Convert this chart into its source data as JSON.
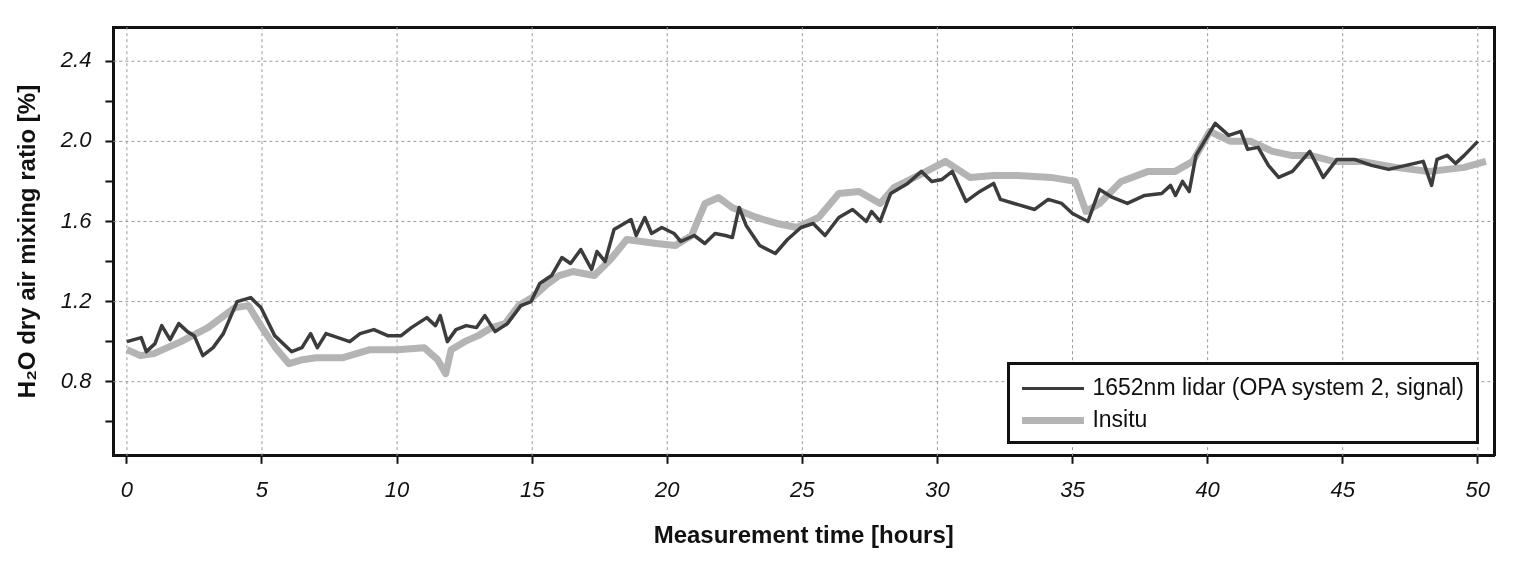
{
  "chart_data": {
    "type": "line",
    "xlabel": "Measurement time [hours]",
    "ylabel": "H₂O dry air mixing ratio [%]",
    "xlim": [
      -0.5,
      50.6
    ],
    "ylim": [
      0.43,
      2.57
    ],
    "xticks": [
      0,
      5,
      10,
      15,
      20,
      25,
      30,
      35,
      40,
      45,
      50
    ],
    "yticks": [
      {
        "value": 0.6,
        "label": null
      },
      {
        "value": 0.8,
        "label": "0.8"
      },
      {
        "value": 1.0,
        "label": null
      },
      {
        "value": 1.2,
        "label": "1.2"
      },
      {
        "value": 1.4,
        "label": null
      },
      {
        "value": 1.6,
        "label": "1.6"
      },
      {
        "value": 1.8,
        "label": null
      },
      {
        "value": 2.0,
        "label": "2.0"
      },
      {
        "value": 2.2,
        "label": null
      },
      {
        "value": 2.4,
        "label": "2.4"
      }
    ],
    "grid": true,
    "legend": "bottom right",
    "marker": "none",
    "series": [
      {
        "name": "Insitu",
        "color": "#b4b4b4",
        "x": [
          0,
          0.5,
          1.0,
          2.0,
          3.0,
          3.5,
          4.0,
          4.5,
          5.0,
          5.5,
          6.0,
          6.5,
          7.0,
          8.0,
          9.0,
          10.0,
          11.0,
          11.5,
          11.8,
          12.0,
          12.5,
          13.0,
          13.5,
          14.0,
          14.5,
          15.0,
          15.5,
          16.0,
          16.5,
          17.3,
          17.9,
          18.5,
          19.6,
          20.3,
          20.9,
          21.4,
          21.9,
          22.4,
          23.3,
          24.06,
          24.8,
          25.6,
          26.35,
          27.1,
          27.88,
          28.4,
          29.3,
          30.3,
          31.2,
          32.08,
          32.97,
          34.2,
          35.1,
          35.5,
          36.0,
          36.8,
          37.8,
          38.8,
          39.45,
          40.08,
          40.85,
          41.6,
          42.4,
          43.1,
          43.8,
          44.66,
          45.7,
          46.95,
          48.2,
          49.5,
          50.3
        ],
        "values": [
          0.96,
          0.93,
          0.94,
          1.0,
          1.07,
          1.12,
          1.17,
          1.18,
          1.07,
          0.97,
          0.89,
          0.91,
          0.92,
          0.92,
          0.96,
          0.96,
          0.97,
          0.91,
          0.84,
          0.96,
          1.0,
          1.03,
          1.07,
          1.09,
          1.18,
          1.22,
          1.28,
          1.33,
          1.35,
          1.33,
          1.41,
          1.51,
          1.49,
          1.48,
          1.53,
          1.69,
          1.72,
          1.67,
          1.62,
          1.59,
          1.57,
          1.62,
          1.74,
          1.75,
          1.69,
          1.77,
          1.83,
          1.9,
          1.82,
          1.83,
          1.83,
          1.82,
          1.8,
          1.65,
          1.69,
          1.8,
          1.85,
          1.85,
          1.9,
          2.05,
          2.0,
          2.0,
          1.95,
          1.93,
          1.93,
          1.9,
          1.9,
          1.87,
          1.85,
          1.87,
          1.9
        ]
      },
      {
        "name": "1652nm lidar (OPA system 2, signal)",
        "color": "#3c3c3c",
        "x": [
          0,
          0.53,
          0.72,
          1.04,
          1.29,
          1.6,
          1.92,
          2.24,
          2.49,
          2.81,
          3.19,
          3.57,
          4.08,
          4.58,
          4.96,
          5.47,
          6.1,
          6.48,
          6.8,
          7.05,
          7.37,
          8.25,
          8.63,
          9.14,
          9.65,
          10.15,
          10.53,
          11.1,
          11.42,
          11.6,
          11.86,
          12.18,
          12.56,
          12.94,
          13.25,
          13.63,
          14.08,
          14.58,
          14.96,
          15.28,
          15.72,
          16.1,
          16.42,
          16.8,
          17.2,
          17.4,
          17.7,
          18.03,
          18.66,
          18.85,
          19.17,
          19.42,
          19.8,
          20.25,
          20.5,
          21.0,
          21.39,
          21.77,
          22.15,
          22.41,
          22.66,
          22.92,
          23.42,
          24.0,
          24.45,
          24.95,
          25.4,
          25.84,
          26.35,
          26.86,
          27.37,
          27.56,
          27.88,
          28.27,
          28.9,
          29.41,
          29.79,
          30.17,
          30.55,
          31.06,
          31.57,
          32.08,
          32.33,
          32.84,
          33.6,
          34.1,
          34.6,
          35.0,
          35.57,
          36.0,
          36.48,
          37.03,
          37.67,
          38.3,
          38.63,
          38.81,
          39.07,
          39.32,
          39.57,
          40.28,
          40.78,
          41.23,
          41.48,
          41.87,
          42.25,
          42.63,
          43.14,
          43.78,
          44.28,
          44.79,
          45.43,
          46.07,
          46.7,
          47.34,
          47.98,
          48.29,
          48.49,
          48.87,
          49.18,
          49.5,
          50.0
        ],
        "values": [
          1.0,
          1.02,
          0.95,
          0.99,
          1.08,
          1.01,
          1.09,
          1.05,
          1.03,
          0.93,
          0.97,
          1.04,
          1.2,
          1.22,
          1.17,
          1.03,
          0.95,
          0.97,
          1.04,
          0.97,
          1.04,
          1.0,
          1.04,
          1.06,
          1.03,
          1.03,
          1.07,
          1.12,
          1.08,
          1.13,
          1.0,
          1.06,
          1.08,
          1.07,
          1.13,
          1.05,
          1.09,
          1.18,
          1.2,
          1.29,
          1.33,
          1.42,
          1.39,
          1.46,
          1.36,
          1.45,
          1.4,
          1.56,
          1.61,
          1.53,
          1.62,
          1.54,
          1.57,
          1.54,
          1.5,
          1.53,
          1.49,
          1.54,
          1.53,
          1.52,
          1.67,
          1.58,
          1.48,
          1.44,
          1.51,
          1.57,
          1.59,
          1.53,
          1.62,
          1.66,
          1.6,
          1.65,
          1.6,
          1.74,
          1.79,
          1.85,
          1.8,
          1.81,
          1.85,
          1.7,
          1.75,
          1.79,
          1.71,
          1.69,
          1.66,
          1.71,
          1.69,
          1.64,
          1.6,
          1.76,
          1.72,
          1.69,
          1.73,
          1.74,
          1.78,
          1.73,
          1.8,
          1.75,
          1.93,
          2.09,
          2.03,
          2.05,
          1.96,
          1.97,
          1.88,
          1.82,
          1.85,
          1.95,
          1.82,
          1.91,
          1.91,
          1.88,
          1.86,
          1.88,
          1.9,
          1.78,
          1.91,
          1.93,
          1.89,
          1.93,
          2.0
        ]
      }
    ]
  }
}
